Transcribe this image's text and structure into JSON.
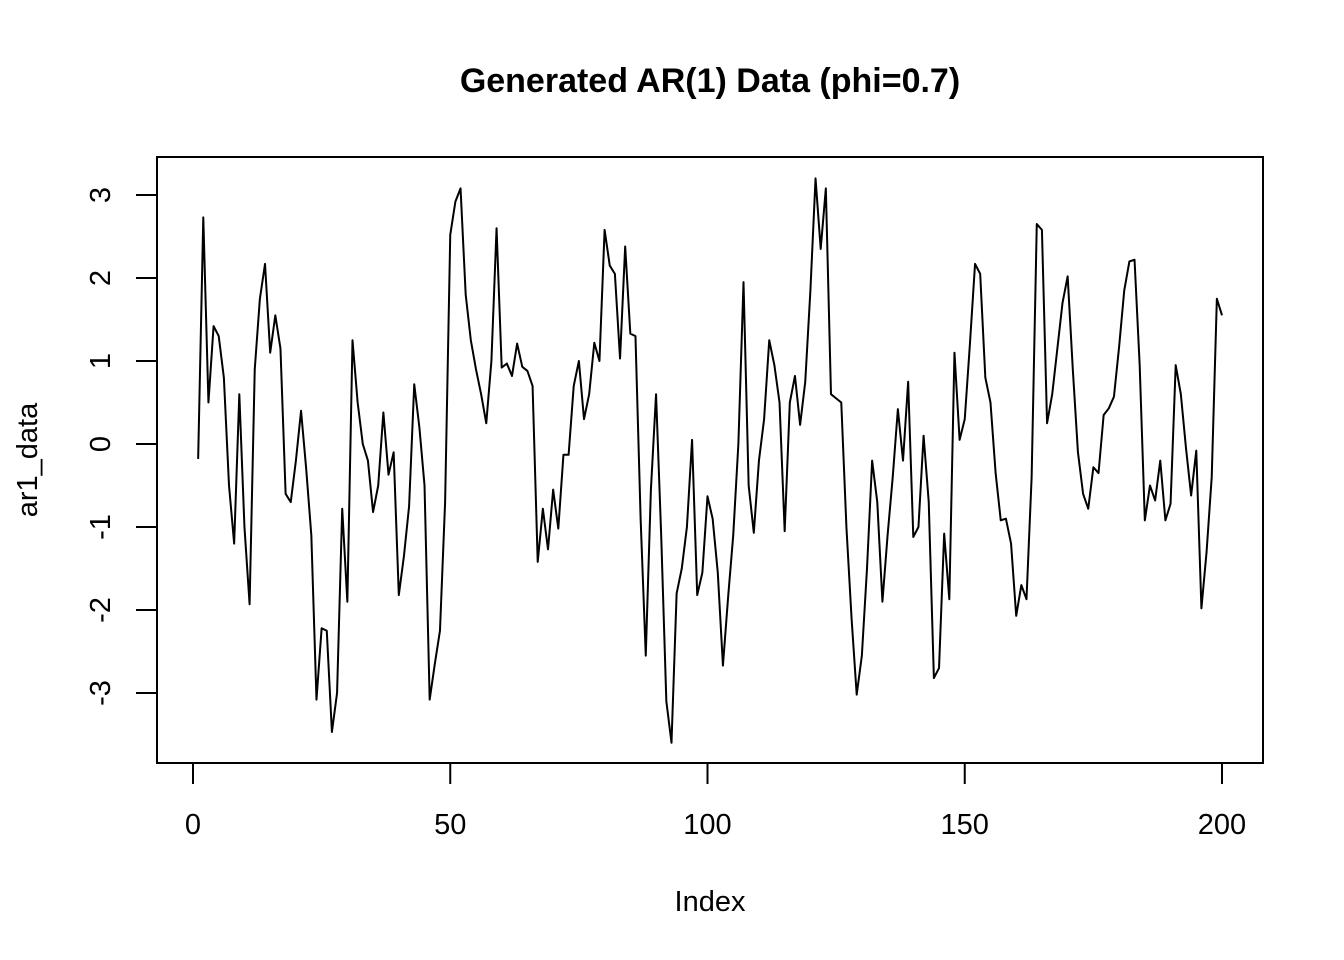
{
  "chart_data": {
    "type": "line",
    "title": "Generated AR(1) Data (phi=0.7)",
    "xlabel": "Index",
    "ylabel": "ar1_data",
    "xlim": [
      1,
      200
    ],
    "ylim": [
      -3.6,
      3.2
    ],
    "xticks": [
      0,
      50,
      100,
      150,
      200
    ],
    "yticks": [
      -3,
      -2,
      -1,
      0,
      1,
      2,
      3
    ],
    "grid": false,
    "legend": "none",
    "line_color": "#000000",
    "series": [
      {
        "x": [
          1,
          2,
          3,
          4,
          5,
          6,
          7,
          8,
          9,
          10,
          11,
          12,
          13,
          14,
          15,
          16,
          17,
          18,
          19,
          20,
          21,
          22,
          23,
          24,
          25,
          26,
          27,
          28,
          29,
          30,
          31,
          32,
          33,
          34,
          35,
          36,
          37,
          38,
          39,
          40,
          41,
          42,
          43,
          44,
          45,
          46,
          47,
          48,
          49,
          50,
          51,
          52,
          53,
          54,
          55,
          56,
          57,
          58,
          59,
          60,
          61,
          62,
          63,
          64,
          65,
          66,
          67,
          68,
          69,
          70,
          71,
          72,
          73,
          74,
          75,
          76,
          77,
          78,
          79,
          80,
          81,
          82,
          83,
          84,
          85,
          86,
          87,
          88,
          89,
          90,
          91,
          92,
          93,
          94,
          95,
          96,
          97,
          98,
          99,
          100,
          101,
          102,
          103,
          104,
          105,
          106,
          107,
          108,
          109,
          110,
          111,
          112,
          113,
          114,
          115,
          116,
          117,
          118,
          119,
          120,
          121,
          122,
          123,
          124,
          125,
          126,
          127,
          128,
          129,
          130,
          131,
          132,
          133,
          134,
          135,
          136,
          137,
          138,
          139,
          140,
          141,
          142,
          143,
          144,
          145,
          146,
          147,
          148,
          149,
          150,
          151,
          152,
          153,
          154,
          155,
          156,
          157,
          158,
          159,
          160,
          161,
          162,
          163,
          164,
          165,
          166,
          167,
          168,
          169,
          170,
          171,
          172,
          173,
          174,
          175,
          176,
          177,
          178,
          179,
          180,
          181,
          182,
          183,
          184,
          185,
          186,
          187,
          188,
          189,
          190,
          191,
          192,
          193,
          194,
          195,
          196,
          197,
          198,
          199,
          200
        ],
        "values": [
          -0.18,
          2.73,
          0.5,
          1.42,
          1.3,
          0.8,
          -0.5,
          -1.2,
          0.6,
          -1.0,
          -1.93,
          0.9,
          1.75,
          2.17,
          1.1,
          1.55,
          1.15,
          -0.6,
          -0.7,
          -0.2,
          0.4,
          -0.3,
          -1.1,
          -3.08,
          -2.22,
          -2.25,
          -3.47,
          -3.0,
          -0.78,
          -1.9,
          1.25,
          0.5,
          0.0,
          -0.2,
          -0.82,
          -0.5,
          0.38,
          -0.37,
          -0.1,
          -1.82,
          -1.35,
          -0.75,
          0.72,
          0.2,
          -0.5,
          -3.08,
          -2.65,
          -2.25,
          -0.7,
          2.52,
          2.92,
          3.08,
          1.8,
          1.25,
          0.9,
          0.6,
          0.25,
          1.0,
          2.6,
          0.92,
          0.97,
          0.82,
          1.21,
          0.93,
          0.88,
          0.7,
          -1.42,
          -0.78,
          -1.27,
          -0.55,
          -1.02,
          -0.13,
          -0.13,
          0.7,
          1.0,
          0.3,
          0.6,
          1.22,
          1.0,
          2.58,
          2.15,
          2.05,
          1.03,
          2.38,
          1.33,
          1.3,
          -0.9,
          -2.55,
          -0.55,
          0.6,
          -1.1,
          -3.1,
          -3.6,
          -1.8,
          -1.5,
          -1.0,
          0.05,
          -1.82,
          -1.55,
          -0.63,
          -0.9,
          -1.55,
          -2.67,
          -1.85,
          -1.1,
          0.0,
          1.95,
          -0.5,
          -1.07,
          -0.2,
          0.3,
          1.25,
          0.95,
          0.5,
          -1.05,
          0.5,
          0.82,
          0.23,
          0.75,
          1.85,
          3.2,
          2.35,
          3.08,
          0.6,
          0.55,
          0.5,
          -1.0,
          -2.1,
          -3.02,
          -2.55,
          -1.5,
          -0.2,
          -0.7,
          -1.9,
          -1.1,
          -0.4,
          0.42,
          -0.2,
          0.75,
          -1.12,
          -1.0,
          0.1,
          -0.7,
          -2.82,
          -2.7,
          -1.08,
          -1.87,
          1.1,
          0.05,
          0.3,
          1.2,
          2.17,
          2.05,
          0.8,
          0.5,
          -0.35,
          -0.92,
          -0.9,
          -1.2,
          -2.07,
          -1.7,
          -1.87,
          -0.4,
          2.65,
          2.58,
          0.25,
          0.6,
          1.15,
          1.7,
          2.02,
          0.9,
          -0.1,
          -0.6,
          -0.78,
          -0.28,
          -0.35,
          0.35,
          0.43,
          0.57,
          1.17,
          1.85,
          2.2,
          2.22,
          0.95,
          -0.92,
          -0.5,
          -0.68,
          -0.2,
          -0.92,
          -0.72,
          0.95,
          0.6,
          -0.05,
          -0.62,
          -0.08,
          -1.98,
          -1.3,
          -0.4,
          1.75,
          1.55
        ]
      }
    ]
  }
}
